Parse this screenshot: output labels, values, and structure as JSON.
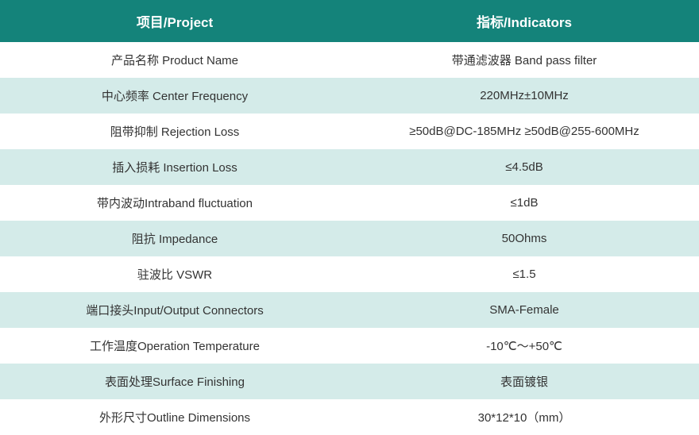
{
  "header": {
    "col1": "项目/Project",
    "col2": "指标/Indicators"
  },
  "rows": [
    {
      "project": "产品名称 Product Name",
      "indicator": "带通滤波器  Band pass filter"
    },
    {
      "project": "中心频率 Center Frequency",
      "indicator": "220MHz±10MHz"
    },
    {
      "project": "阻带抑制 Rejection Loss",
      "indicator": "≥50dB@DC-185MHz    ≥50dB@255-600MHz"
    },
    {
      "project": "插入损耗 Insertion Loss",
      "indicator": "≤4.5dB"
    },
    {
      "project": "带内波动Intraband fluctuation",
      "indicator": "≤1dB"
    },
    {
      "project": "阻抗 Impedance",
      "indicator": "50Ohms"
    },
    {
      "project": "驻波比 VSWR",
      "indicator": "≤1.5"
    },
    {
      "project": "端口接头Input/Output Connectors",
      "indicator": "SMA-Female"
    },
    {
      "project": "工作温度Operation Temperature",
      "indicator": "-10℃～+50℃"
    },
    {
      "project": "表面处理Surface Finishing",
      "indicator": "表面镀银"
    },
    {
      "project": "外形尺寸Outline Dimensions",
      "indicator": "30*12*10（mm）"
    }
  ],
  "styles": {
    "header_bg": "#14837a",
    "header_color": "#ffffff",
    "row_odd_bg": "#ffffff",
    "row_even_bg": "#d4ebe9",
    "text_color": "#333333",
    "header_fontsize": 17,
    "body_fontsize": 15
  }
}
